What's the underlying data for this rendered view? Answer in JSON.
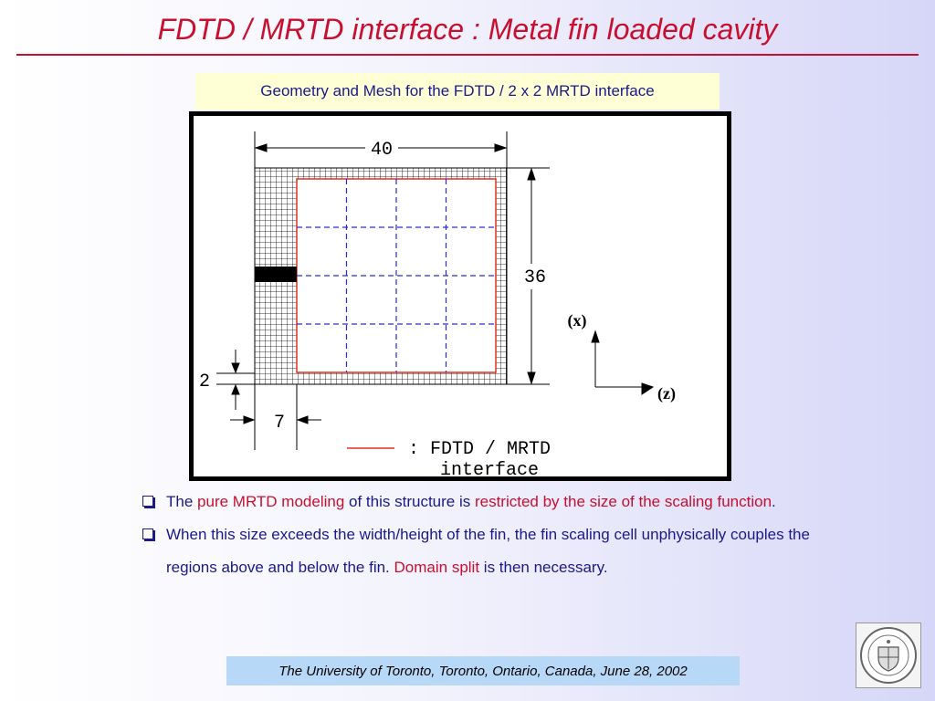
{
  "header": {
    "title": "FDTD / MRTD interface : Metal fin loaded cavity"
  },
  "caption": "Geometry and Mesh for the FDTD / 2 x 2 MRTD interface",
  "figure": {
    "dim_width": "40",
    "dim_height": "36",
    "dim_fin": "2",
    "dim_offset": "7",
    "axis_x": "(x)",
    "axis_z": "(z)",
    "legend_line1": ": FDTD / MRTD",
    "legend_line2": "interface",
    "colors": {
      "interface": "#e03020",
      "mrtd_grid": "#2a2adc",
      "fdtd_grid": "#000000"
    }
  },
  "bullets": {
    "b1": {
      "p1": "The ",
      "p2": "pure MRTD modeling",
      "p3": " of this structure is ",
      "p4": "restricted by the size of the scaling function",
      "p5": "."
    },
    "b2": {
      "p1": "When this size exceeds the width/height of the fin, the fin scaling cell unphysically couples the regions above and below the fin. ",
      "p2": "Domain split",
      "p3": " is then necessary."
    }
  },
  "footer": "The University of Toronto, Toronto, Ontario, Canada, June 28, 2002",
  "colors": {
    "title": "#c8102e",
    "text": "#1a1a8c",
    "highlight": "#c8102e",
    "caption_bg": "#ffffd5",
    "footer_bg": "#b8d8f8"
  }
}
